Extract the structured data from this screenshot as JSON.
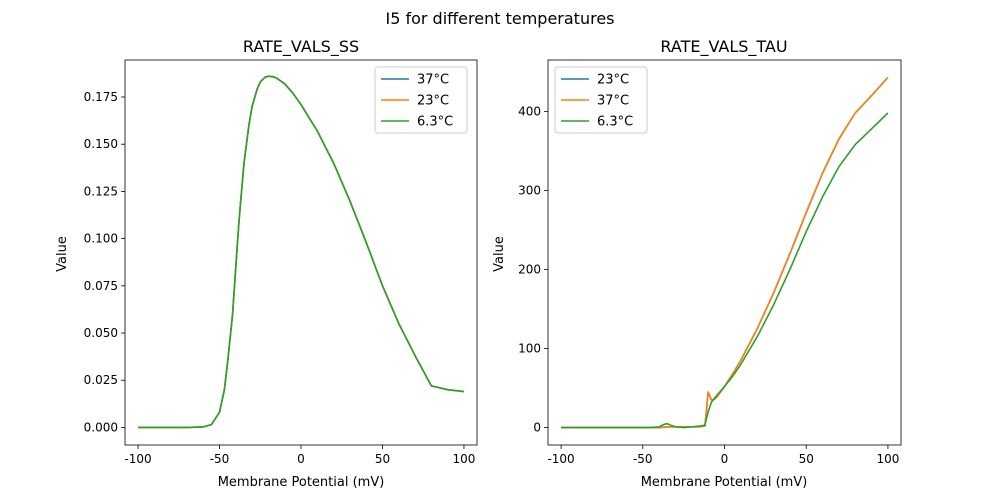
{
  "figure": {
    "suptitle": "I5 for different temperatures"
  },
  "colors": {
    "blue": "#1f77b4",
    "orange": "#ff7f0e",
    "green": "#2ca02c"
  },
  "chart_data": [
    {
      "type": "line",
      "title": "RATE_VALS_SS",
      "xlabel": "Membrane Potential (mV)",
      "ylabel": "Value",
      "xlim": [
        -108,
        108
      ],
      "ylim": [
        -0.0093,
        0.1946
      ],
      "xticks": [
        -100,
        -50,
        0,
        50,
        100
      ],
      "yticks": [
        0.0,
        0.025,
        0.05,
        0.075,
        0.1,
        0.125,
        0.15,
        0.175
      ],
      "ytick_labels": [
        "0.000",
        "0.025",
        "0.050",
        "0.075",
        "0.100",
        "0.125",
        "0.150",
        "0.175"
      ],
      "legend": "top-right",
      "series": [
        {
          "name": "37°C",
          "color": "#1f77b4",
          "x": [
            -100,
            -80,
            -70,
            -60,
            -55,
            -50,
            -47,
            -45,
            -42,
            -40,
            -38,
            -35,
            -32,
            -30,
            -27,
            -25,
            -22,
            -20,
            -17,
            -15,
            -10,
            -5,
            0,
            5,
            10,
            20,
            30,
            40,
            50,
            60,
            70,
            80,
            90,
            100
          ],
          "y": [
            0,
            0,
            0,
            0.0003,
            0.0015,
            0.008,
            0.02,
            0.035,
            0.06,
            0.085,
            0.11,
            0.14,
            0.16,
            0.17,
            0.179,
            0.183,
            0.1855,
            0.186,
            0.1857,
            0.185,
            0.182,
            0.177,
            0.171,
            0.164,
            0.157,
            0.14,
            0.12,
            0.098,
            0.075,
            0.055,
            0.038,
            0.022,
            0.02,
            0.019
          ]
        },
        {
          "name": "23°C",
          "color": "#ff7f0e",
          "x": [
            -100,
            -80,
            -70,
            -60,
            -55,
            -50,
            -47,
            -45,
            -42,
            -40,
            -38,
            -35,
            -32,
            -30,
            -27,
            -25,
            -22,
            -20,
            -17,
            -15,
            -10,
            -5,
            0,
            5,
            10,
            20,
            30,
            40,
            50,
            60,
            70,
            80,
            90,
            100
          ],
          "y": [
            0,
            0,
            0,
            0.0003,
            0.0015,
            0.008,
            0.02,
            0.035,
            0.06,
            0.085,
            0.11,
            0.14,
            0.16,
            0.17,
            0.179,
            0.183,
            0.1855,
            0.186,
            0.1857,
            0.185,
            0.182,
            0.177,
            0.171,
            0.164,
            0.157,
            0.14,
            0.12,
            0.098,
            0.075,
            0.055,
            0.038,
            0.022,
            0.02,
            0.019
          ]
        },
        {
          "name": "6.3°C",
          "color": "#2ca02c",
          "x": [
            -100,
            -80,
            -70,
            -60,
            -55,
            -50,
            -47,
            -45,
            -42,
            -40,
            -38,
            -35,
            -32,
            -30,
            -27,
            -25,
            -22,
            -20,
            -17,
            -15,
            -10,
            -5,
            0,
            5,
            10,
            20,
            30,
            40,
            50,
            60,
            70,
            80,
            90,
            100
          ],
          "y": [
            0,
            0,
            0,
            0.0003,
            0.0015,
            0.008,
            0.02,
            0.035,
            0.06,
            0.085,
            0.11,
            0.14,
            0.16,
            0.17,
            0.179,
            0.183,
            0.1855,
            0.186,
            0.1857,
            0.185,
            0.182,
            0.177,
            0.171,
            0.164,
            0.157,
            0.14,
            0.12,
            0.098,
            0.075,
            0.055,
            0.038,
            0.022,
            0.02,
            0.019
          ]
        }
      ]
    },
    {
      "type": "line",
      "title": "RATE_VALS_TAU",
      "xlabel": "Membrane Potential (mV)",
      "ylabel": "Value",
      "xlim": [
        -108,
        108
      ],
      "ylim": [
        -22,
        465
      ],
      "xticks": [
        -100,
        -50,
        0,
        50,
        100
      ],
      "yticks": [
        0,
        100,
        200,
        300,
        400
      ],
      "ytick_labels": [
        "0",
        "100",
        "200",
        "300",
        "400"
      ],
      "legend": "top-left",
      "series": [
        {
          "name": "23°C",
          "color": "#1f77b4",
          "x": [
            -100,
            -80,
            -60,
            -40,
            -35,
            -30,
            -20,
            -15,
            -12,
            -11,
            -10,
            -9,
            -8,
            -7,
            -5,
            0,
            5,
            10,
            20,
            30,
            40,
            50,
            60,
            70,
            80,
            90,
            100
          ],
          "y": [
            0,
            0,
            0,
            0,
            1,
            1,
            1,
            1,
            2,
            22,
            45,
            40,
            35,
            35,
            38,
            52,
            68,
            85,
            125,
            170,
            220,
            272,
            322,
            365,
            398,
            420,
            443
          ]
        },
        {
          "name": "37°C",
          "color": "#ff7f0e",
          "x": [
            -100,
            -80,
            -60,
            -40,
            -35,
            -30,
            -20,
            -15,
            -12,
            -11,
            -10,
            -9,
            -8,
            -7,
            -5,
            0,
            5,
            10,
            20,
            30,
            40,
            50,
            60,
            70,
            80,
            90,
            100
          ],
          "y": [
            0,
            0,
            0,
            0,
            1,
            1,
            1,
            1,
            2,
            22,
            45,
            40,
            35,
            35,
            38,
            52,
            68,
            85,
            125,
            170,
            220,
            272,
            322,
            365,
            398,
            420,
            443
          ]
        },
        {
          "name": "6.3°C",
          "color": "#2ca02c",
          "x": [
            -100,
            -80,
            -60,
            -45,
            -40,
            -37,
            -35,
            -33,
            -30,
            -25,
            -20,
            -15,
            -12,
            -10,
            -8,
            -5,
            0,
            5,
            10,
            20,
            30,
            40,
            50,
            60,
            70,
            80,
            90,
            100
          ],
          "y": [
            0,
            0,
            0,
            0,
            1,
            4,
            5,
            3,
            1,
            0,
            1,
            2,
            3,
            20,
            32,
            40,
            52,
            65,
            80,
            115,
            155,
            200,
            248,
            292,
            330,
            358,
            378,
            398
          ]
        }
      ]
    }
  ]
}
